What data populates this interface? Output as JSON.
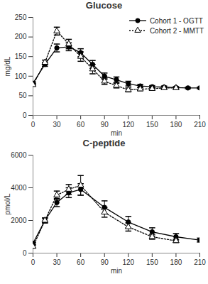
{
  "chart_data": [
    {
      "type": "line",
      "title": "Glucose",
      "x_label": "min",
      "y_label": "mg/dL",
      "xlim": [
        0,
        210
      ],
      "xticks": [
        0,
        30,
        60,
        90,
        120,
        150,
        180,
        210
      ],
      "ylim": [
        0,
        250
      ],
      "yticks": [
        0,
        50,
        100,
        150,
        200,
        250
      ],
      "grid": false,
      "legend": "top-right",
      "series": [
        {
          "name": "Cohort 1 - OGTT",
          "color": "#000000",
          "marker": "circle",
          "line_style": "solid",
          "x": [
            0,
            15,
            30,
            45,
            60,
            75,
            90,
            105,
            120,
            135,
            150,
            165,
            180,
            195,
            210
          ],
          "values": [
            82,
            130,
            172,
            175,
            160,
            130,
            100,
            91,
            81,
            75,
            73,
            72,
            71,
            70,
            70
          ],
          "errors": [
            3,
            5,
            10,
            10,
            10,
            10,
            8,
            7,
            6,
            4,
            3,
            3,
            2,
            2,
            2
          ]
        },
        {
          "name": "Cohort 2 - MMTT",
          "color": "#000000",
          "marker": "triangle",
          "line_style": "dotted",
          "x": [
            0,
            15,
            30,
            45,
            60,
            75,
            90,
            105,
            120,
            135,
            150,
            165,
            180
          ],
          "values": [
            78,
            135,
            215,
            182,
            150,
            118,
            87,
            76,
            65,
            67,
            68,
            70,
            70
          ],
          "errors": [
            3,
            6,
            10,
            12,
            12,
            12,
            8,
            6,
            5,
            4,
            3,
            3,
            3
          ]
        }
      ]
    },
    {
      "type": "line",
      "title": "C-peptide",
      "x_label": "min",
      "y_label": "pmol/L",
      "xlim": [
        0,
        210
      ],
      "xticks": [
        0,
        30,
        60,
        90,
        120,
        150,
        180,
        210
      ],
      "ylim": [
        0,
        6000
      ],
      "yticks": [
        0,
        2000,
        4000,
        6000
      ],
      "grid": false,
      "series": [
        {
          "color": "#000000",
          "marker": "circle",
          "line_style": "solid",
          "x": [
            0,
            15,
            30,
            45,
            60,
            90,
            120,
            150,
            180,
            210
          ],
          "values": [
            600,
            2000,
            3100,
            3700,
            3900,
            2800,
            1900,
            1300,
            1000,
            800
          ],
          "errors": [
            60,
            150,
            250,
            300,
            350,
            400,
            350,
            250,
            200,
            120
          ]
        },
        {
          "color": "#000000",
          "marker": "triangle",
          "line_style": "dotted",
          "x": [
            0,
            15,
            30,
            45,
            60,
            90,
            120,
            150,
            180
          ],
          "values": [
            400,
            2000,
            3550,
            3900,
            4150,
            2500,
            1600,
            1000,
            750
          ],
          "errors": [
            80,
            150,
            250,
            300,
            600,
            300,
            250,
            150,
            100
          ]
        }
      ]
    }
  ]
}
